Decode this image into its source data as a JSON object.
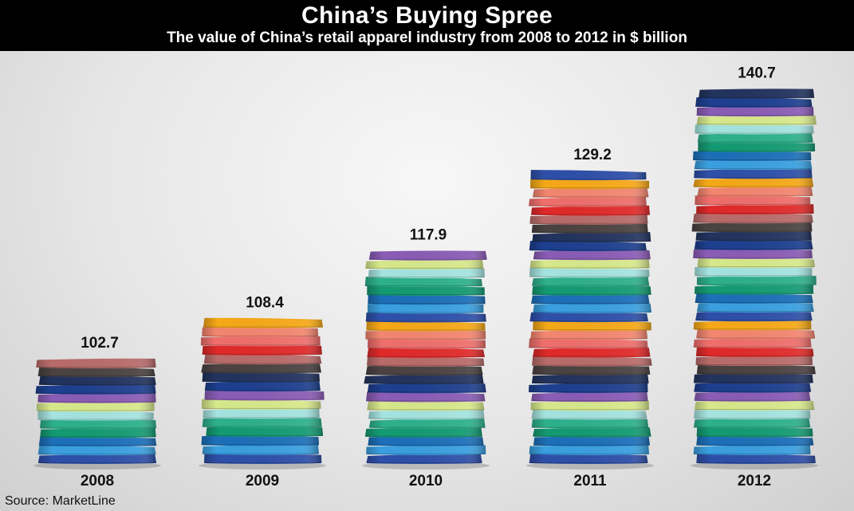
{
  "header": {
    "title": "China’s Buying Spree",
    "subtitle": "The value of China’s retail apparel industry from 2008 to 2012 in $ billion"
  },
  "chart_data": {
    "type": "bar",
    "categories": [
      "2008",
      "2009",
      "2010",
      "2011",
      "2012"
    ],
    "values": [
      102.7,
      108.4,
      117.9,
      129.2,
      140.7
    ],
    "value_labels": [
      "102.7",
      "108.4",
      "117.9",
      "129.2",
      "140.7"
    ],
    "ylim": [
      88,
      142
    ],
    "bar_style": "stacks of folded t-shirts",
    "shirt_colors": [
      "#2e4fa8",
      "#3a9fdf",
      "#1c6fb8",
      "#149a72",
      "#2eb08c",
      "#a4e3df",
      "#d6e88b",
      "#8a5cb5",
      "#1d3f8f",
      "#22335e",
      "#4b4242",
      "#b86c6a",
      "#e02a2a",
      "#ee6f6c",
      "#f28670",
      "#f5a818"
    ]
  },
  "footer": {
    "source": "Source: MarketLine"
  }
}
